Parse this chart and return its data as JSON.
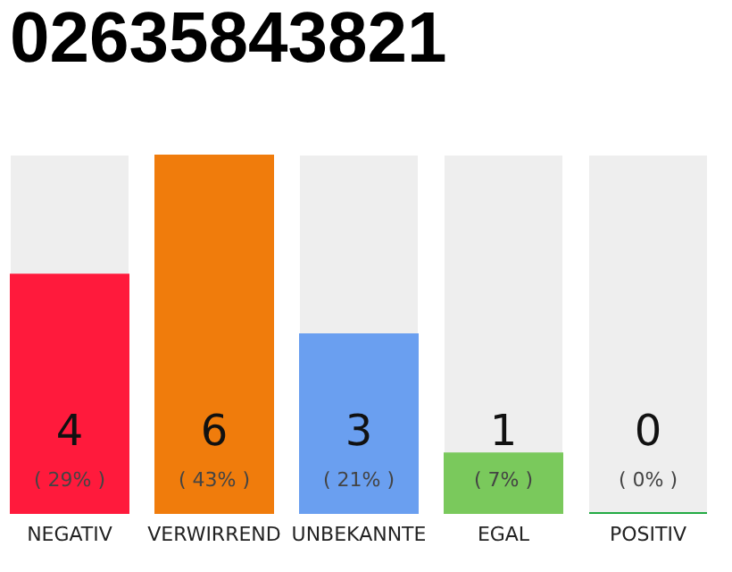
{
  "chart_data": {
    "type": "bar",
    "title": "02635843821",
    "categories": [
      "NEGATIV",
      "VERWIRREND",
      "UNBEKANNTE",
      "EGAL",
      "POSITIV"
    ],
    "values": [
      4,
      6,
      3,
      1,
      0
    ],
    "colors": [
      "#ff1a3c",
      "#f07c0c",
      "#6a9ff0",
      "#7ac95c",
      "#22aa44"
    ],
    "data_labels": true,
    "annotations": [
      "( 29% )",
      "( 43% )",
      "( 21% )",
      "( 7% )",
      "( 0% )"
    ]
  }
}
